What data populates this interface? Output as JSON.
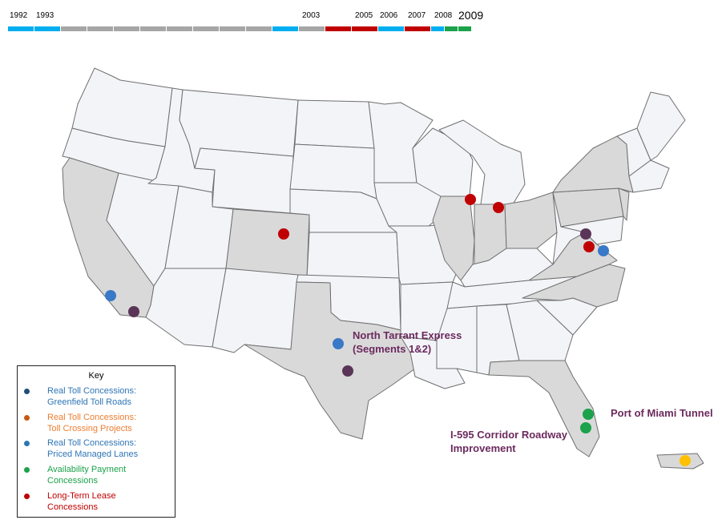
{
  "timeline": {
    "labels": [
      "1992",
      "1993",
      "2003",
      "2005",
      "2006",
      "2007",
      "2008",
      "2009"
    ],
    "segments": [
      {
        "year": "1992",
        "color": "#00aeef"
      },
      {
        "year": "1993",
        "color": "#00aeef"
      },
      {
        "year": "",
        "color": "#a6a6a6"
      },
      {
        "year": "",
        "color": "#a6a6a6"
      },
      {
        "year": "",
        "color": "#a6a6a6"
      },
      {
        "year": "",
        "color": "#a6a6a6"
      },
      {
        "year": "",
        "color": "#a6a6a6"
      },
      {
        "year": "",
        "color": "#a6a6a6"
      },
      {
        "year": "",
        "color": "#a6a6a6"
      },
      {
        "year": "",
        "color": "#a6a6a6"
      },
      {
        "year": "2003",
        "color": "#00aeef"
      },
      {
        "year": "",
        "color": "#a6a6a6"
      },
      {
        "year": "2005",
        "color": "#c00000"
      },
      {
        "year": "2006",
        "color": "#c00000"
      },
      {
        "year": "2007",
        "color": "#00aeef"
      },
      {
        "year": "2008",
        "color": "#c00000"
      },
      {
        "year": "",
        "color": "#00aeef"
      },
      {
        "year": "2009",
        "color": "#1ba24a"
      },
      {
        "year": "",
        "color": "#1ba24a"
      }
    ]
  },
  "map": {
    "highlight_color": "#d9d9d9",
    "base_color": "#f3f4f8",
    "outline_color": "#6f6f6f",
    "highlighted_states": [
      "CA",
      "CO",
      "TX",
      "IL",
      "IN",
      "OH",
      "VA",
      "NC",
      "FL",
      "NY",
      "PA",
      "NJ",
      "PR"
    ]
  },
  "callouts": [
    {
      "text": "North Tarrant Express\n(Segments 1&2)"
    },
    {
      "text": "Port of Miami Tunnel"
    },
    {
      "text": "I-595 Corridor Roadway\nImprovement"
    }
  ],
  "projects": [
    {
      "location": "California (Los Angeles area)",
      "category": "managed",
      "color": "#3a78c8"
    },
    {
      "location": "California (Southern)",
      "category": "unknown",
      "color": "#5a3558"
    },
    {
      "location": "Colorado",
      "category": "lease",
      "color": "#c00000"
    },
    {
      "location": "Texas (North Tarrant Express)",
      "category": "managed",
      "color": "#3a78c8"
    },
    {
      "location": "Texas (Central)",
      "category": "unknown",
      "color": "#5a3558"
    },
    {
      "location": "Illinois (Chicago)",
      "category": "lease",
      "color": "#c00000"
    },
    {
      "location": "Indiana",
      "category": "lease",
      "color": "#c00000"
    },
    {
      "location": "Virginia (Northern) A",
      "category": "unknown",
      "color": "#5a3558"
    },
    {
      "location": "Virginia (Northern) B",
      "category": "lease",
      "color": "#c00000"
    },
    {
      "location": "Virginia (Eastern)",
      "category": "managed",
      "color": "#3a78c8"
    },
    {
      "location": "Florida (Port of Miami Tunnel)",
      "category": "availability",
      "color": "#1ba24a"
    },
    {
      "location": "Florida (I-595)",
      "category": "availability",
      "color": "#1ba24a"
    },
    {
      "location": "Puerto Rico",
      "category": "other",
      "color": "#ffc000"
    }
  ],
  "legend": {
    "title": "Key",
    "items": [
      {
        "label": "Real Toll Concessions:\nGreenfield Toll Roads",
        "dot_color": "#1f4e79",
        "text_color": "#2e75b6"
      },
      {
        "label": "Real Toll Concessions:\nToll Crossing Projects",
        "dot_color": "#c55a11",
        "text_color": "#ed7d31"
      },
      {
        "label": "Real Toll Concessions:\nPriced Managed Lanes",
        "dot_color": "#2e75b6",
        "text_color": "#2e75b6"
      },
      {
        "label": "Availability Payment\nConcessions",
        "dot_color": "#1ba24a",
        "text_color": "#1ba24a"
      },
      {
        "label": "Long-Term Lease\nConcessions",
        "dot_color": "#c00000",
        "text_color": "#c00000"
      }
    ]
  }
}
